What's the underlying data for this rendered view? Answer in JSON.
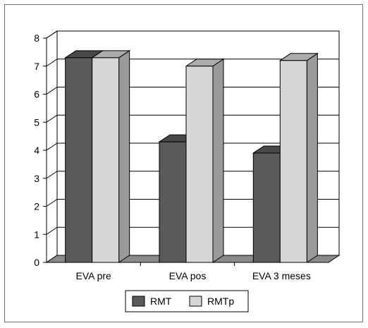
{
  "chart_data": {
    "type": "bar",
    "categories": [
      "EVA pre",
      "EVA pos",
      "EVA 3 meses"
    ],
    "series": [
      {
        "name": "RMT",
        "values": [
          7.3,
          4.3,
          3.9
        ],
        "color": "#5a5a5a"
      },
      {
        "name": "RMTp",
        "values": [
          7.3,
          7.0,
          7.2
        ],
        "color": "#d6d6d6"
      }
    ],
    "ylim": [
      0,
      8
    ],
    "yticks": [
      "0",
      "1",
      "2",
      "3",
      "4",
      "5",
      "6",
      "7",
      "8"
    ],
    "grid": true,
    "legend": "bottom",
    "title": "",
    "xlabel": "",
    "ylabel": ""
  }
}
